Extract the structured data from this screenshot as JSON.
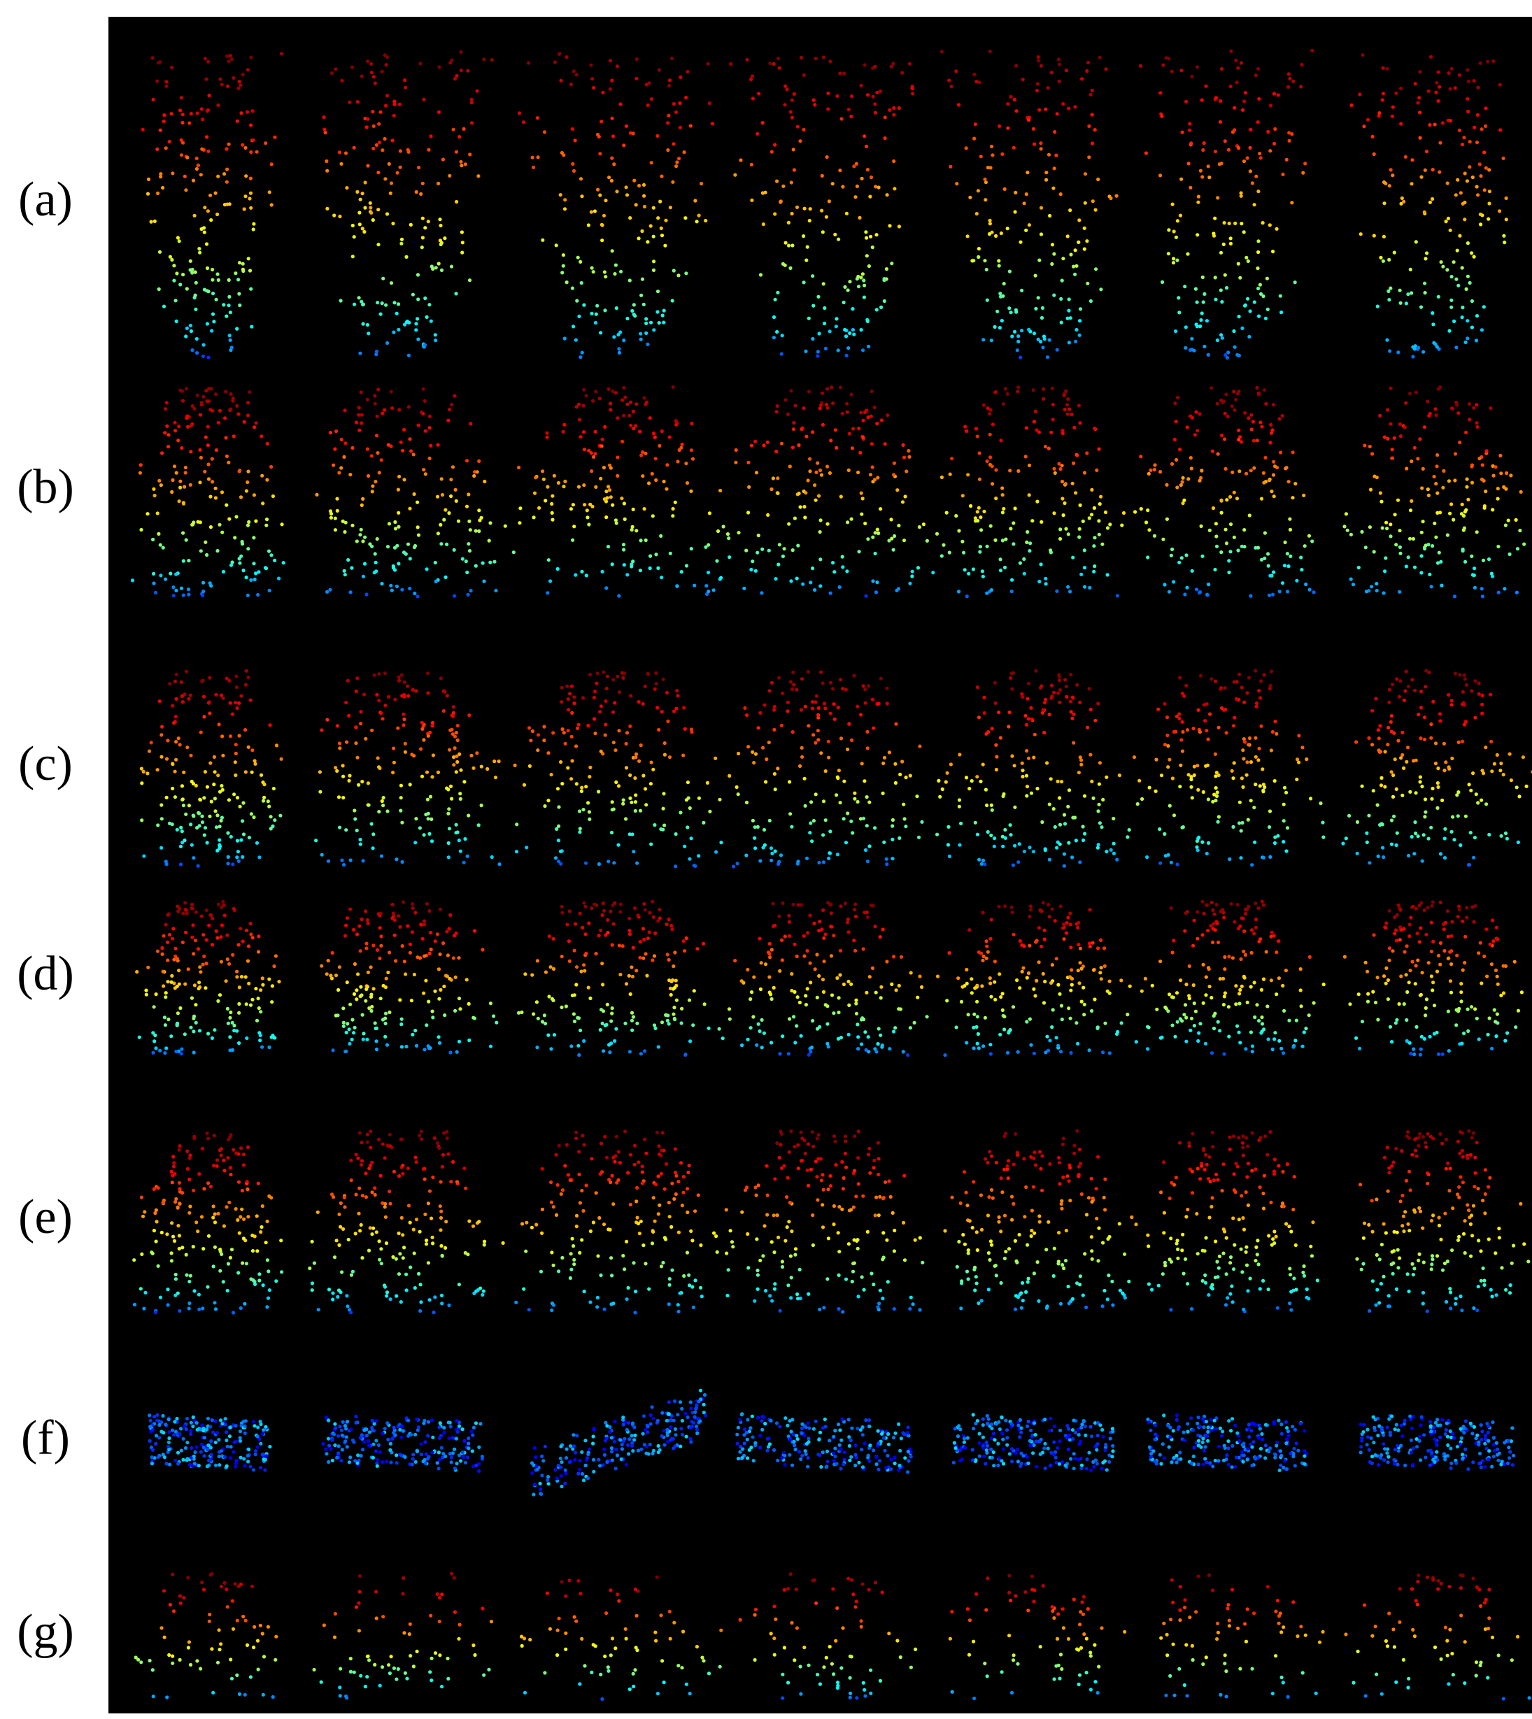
{
  "row_labels": [
    "(a)",
    "(b)",
    "(c)",
    "(d)",
    "(e)",
    "(f)",
    "(g)"
  ]
}
